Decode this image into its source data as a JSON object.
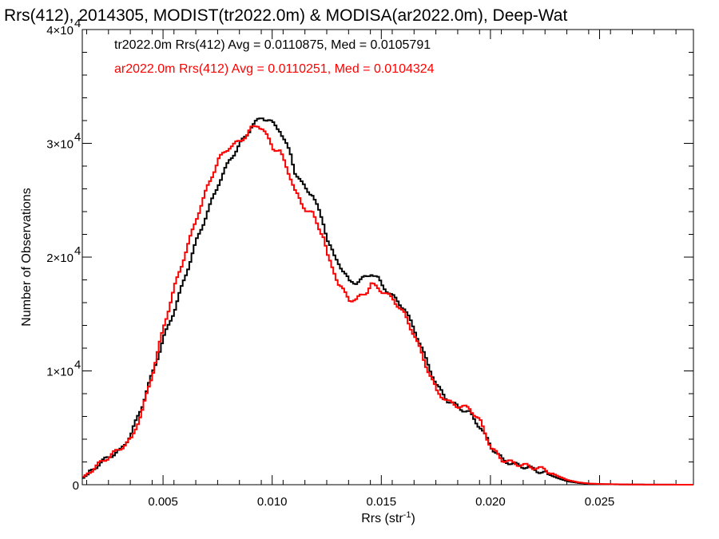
{
  "chart_data": {
    "type": "line",
    "title": "Rrs(412), 2014305, MODIST(tr2022.0m) & MODISA(ar2022.0m), Deep-Wat",
    "xlabel": "Rrs (str",
    "xlabel_sup": "-1",
    "xlabel_close": ")",
    "ylabel": "Number of Observations",
    "xlim": [
      0.0013,
      0.0293
    ],
    "ylim": [
      0,
      40000
    ],
    "x_ticks": [
      {
        "value": 0.005,
        "label": "0.005"
      },
      {
        "value": 0.01,
        "label": "0.010"
      },
      {
        "value": 0.015,
        "label": "0.015"
      },
      {
        "value": 0.02,
        "label": "0.020"
      },
      {
        "value": 0.025,
        "label": "0.025"
      }
    ],
    "y_ticks": [
      {
        "value": 0,
        "label": "0",
        "exp": ""
      },
      {
        "value": 10000,
        "label": "1×10",
        "exp": "4"
      },
      {
        "value": 20000,
        "label": "2×10",
        "exp": "4"
      },
      {
        "value": 30000,
        "label": "3×10",
        "exp": "4"
      },
      {
        "value": 40000,
        "label": "4×10",
        "exp": "4"
      }
    ],
    "legend": [
      {
        "text": "tr2022.0m Rrs(412) Avg = 0.0110875, Med = 0.0105791",
        "color": "#000000"
      },
      {
        "text": "ar2022.0m Rrs(412) Avg = 0.0110251, Med = 0.0104324",
        "color": "#ff0000"
      }
    ],
    "legend_placement": "top-left",
    "series": [
      {
        "name": "tr2022.0m",
        "color": "#000000",
        "x": [
          0.0013,
          0.0015,
          0.002,
          0.0025,
          0.003,
          0.0035,
          0.004,
          0.0045,
          0.005,
          0.0055,
          0.006,
          0.0065,
          0.007,
          0.0075,
          0.008,
          0.0085,
          0.0088,
          0.009,
          0.0093,
          0.0095,
          0.0098,
          0.01,
          0.0103,
          0.0105,
          0.0108,
          0.011,
          0.0113,
          0.0115,
          0.0118,
          0.012,
          0.0123,
          0.0125,
          0.0128,
          0.013,
          0.0133,
          0.0135,
          0.0138,
          0.014,
          0.0143,
          0.0145,
          0.0148,
          0.015,
          0.0155,
          0.016,
          0.0165,
          0.017,
          0.0175,
          0.018,
          0.0185,
          0.019,
          0.0195,
          0.02,
          0.0205,
          0.021,
          0.0215,
          0.022,
          0.0225,
          0.023,
          0.0235,
          0.024,
          0.0245,
          0.025,
          0.026,
          0.027,
          0.028,
          0.0293
        ],
        "y": [
          600,
          900,
          1800,
          2500,
          3000,
          4500,
          7000,
          10000,
          13000,
          15500,
          18500,
          21500,
          24000,
          26500,
          28500,
          30000,
          30800,
          31500,
          32000,
          32300,
          32000,
          31700,
          31200,
          30300,
          29000,
          27500,
          26500,
          26000,
          25500,
          24500,
          23000,
          21500,
          20000,
          19500,
          18500,
          17800,
          17800,
          18000,
          18300,
          18600,
          18100,
          17500,
          16500,
          15500,
          13500,
          11000,
          8700,
          7400,
          6800,
          6300,
          5000,
          3300,
          2200,
          1800,
          1600,
          1300,
          1000,
          600,
          300,
          150,
          80,
          50,
          20,
          10,
          5,
          0
        ]
      },
      {
        "name": "ar2022.0m",
        "color": "#ff0000",
        "x": [
          0.0013,
          0.0015,
          0.002,
          0.0025,
          0.003,
          0.0035,
          0.004,
          0.0045,
          0.005,
          0.0055,
          0.006,
          0.0065,
          0.007,
          0.0075,
          0.008,
          0.0085,
          0.0088,
          0.009,
          0.0093,
          0.0095,
          0.0098,
          0.01,
          0.0103,
          0.0105,
          0.0108,
          0.011,
          0.0113,
          0.0115,
          0.0118,
          0.012,
          0.0123,
          0.0125,
          0.0128,
          0.013,
          0.0133,
          0.0135,
          0.0138,
          0.014,
          0.0143,
          0.0145,
          0.0148,
          0.015,
          0.0155,
          0.016,
          0.0165,
          0.017,
          0.0175,
          0.018,
          0.0185,
          0.019,
          0.0195,
          0.02,
          0.0205,
          0.021,
          0.0215,
          0.022,
          0.0225,
          0.023,
          0.0235,
          0.024,
          0.0245,
          0.025,
          0.026,
          0.027,
          0.028,
          0.0293
        ],
        "y": [
          700,
          1000,
          1800,
          2500,
          3200,
          4000,
          6500,
          10000,
          14000,
          17500,
          20500,
          23500,
          26200,
          28600,
          29700,
          30200,
          30800,
          31300,
          31600,
          31300,
          30300,
          29600,
          29300,
          28400,
          27000,
          25800,
          24700,
          24200,
          23800,
          23000,
          21800,
          20000,
          18700,
          17600,
          16800,
          16300,
          16200,
          16600,
          17000,
          17600,
          17300,
          17000,
          16300,
          15000,
          13000,
          10500,
          8200,
          7300,
          6900,
          6700,
          5500,
          3200,
          2200,
          1900,
          1700,
          1500,
          1300,
          800,
          400,
          200,
          100,
          60,
          30,
          10,
          5,
          0
        ]
      }
    ]
  }
}
